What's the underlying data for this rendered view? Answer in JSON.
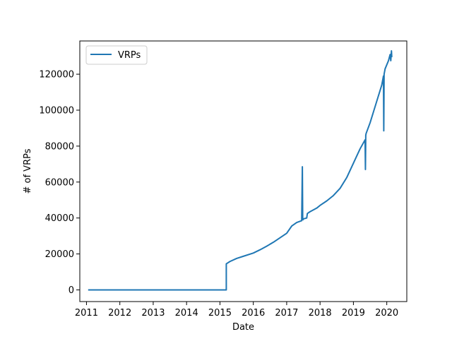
{
  "chart_data": {
    "type": "line",
    "title": "",
    "xlabel": "Date",
    "ylabel": "# of VRPs",
    "xlim": [
      2010.8,
      2020.6
    ],
    "ylim": [
      -6500,
      138500
    ],
    "x_ticks": [
      2011,
      2012,
      2013,
      2014,
      2015,
      2016,
      2017,
      2018,
      2019,
      2020
    ],
    "x_tick_labels": [
      "2011",
      "2012",
      "2013",
      "2014",
      "2015",
      "2016",
      "2017",
      "2018",
      "2019",
      "2020"
    ],
    "y_ticks": [
      0,
      20000,
      40000,
      60000,
      80000,
      100000,
      120000
    ],
    "y_tick_labels": [
      "0",
      "20000",
      "40000",
      "60000",
      "80000",
      "100000",
      "120000"
    ],
    "grid": false,
    "legend": "top-left",
    "color": "#1f77b4",
    "series": [
      {
        "name": "VRPs",
        "x": [
          2011.05,
          2012.0,
          2013.0,
          2014.0,
          2015.0,
          2015.19,
          2015.19,
          2015.3,
          2015.5,
          2015.7,
          2016.0,
          2016.2,
          2016.4,
          2016.6,
          2016.8,
          2017.0,
          2017.15,
          2017.3,
          2017.45,
          2017.47,
          2017.48,
          2017.49,
          2017.5,
          2017.6,
          2017.62,
          2017.7,
          2017.9,
          2018.0,
          2018.2,
          2018.4,
          2018.6,
          2018.8,
          2019.0,
          2019.2,
          2019.35,
          2019.36,
          2019.37,
          2019.38,
          2019.5,
          2019.7,
          2019.85,
          2019.9,
          2019.91,
          2019.92,
          2019.95,
          2020.05,
          2020.1,
          2020.12,
          2020.14,
          2020.15
        ],
        "y": [
          0,
          0,
          0,
          0,
          0,
          0,
          14500,
          15800,
          17500,
          18700,
          20500,
          22300,
          24300,
          26500,
          29000,
          31500,
          35500,
          37500,
          38500,
          68500,
          40000,
          39000,
          39500,
          40000,
          42500,
          43500,
          45500,
          47000,
          49500,
          52500,
          56500,
          62500,
          70500,
          78500,
          83500,
          67000,
          86000,
          87000,
          93000,
          105000,
          114000,
          119000,
          88500,
          120000,
          123000,
          127500,
          131000,
          127500,
          133000,
          129500
        ]
      }
    ]
  }
}
